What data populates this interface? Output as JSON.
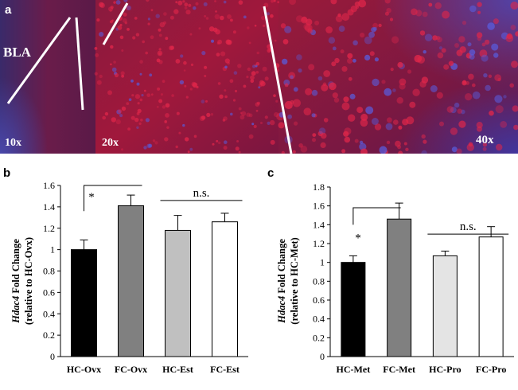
{
  "panel_a": {
    "letter": "a",
    "region_label": "BLA",
    "magnifications": [
      "10x",
      "20x",
      "40x"
    ]
  },
  "colors": {
    "black_bar": "#000000",
    "dark_gray_bar": "#808080",
    "light_gray_bar": "#c0c0c0",
    "very_light_gray_bar": "#e4e4e4",
    "white_bar": "#ffffff",
    "micrograph_red": "#b01e3c",
    "micrograph_blue": "#3c3ca0"
  },
  "chart_data": [
    {
      "panel": "b",
      "type": "bar",
      "categories": [
        "HC-Ovx",
        "FC-Ovx",
        "HC-Est",
        "FC-Est"
      ],
      "values": [
        1.0,
        1.41,
        1.18,
        1.26
      ],
      "errors": [
        0.09,
        0.1,
        0.14,
        0.08
      ],
      "bar_colors": [
        "#000000",
        "#808080",
        "#c0c0c0",
        "#ffffff"
      ],
      "ylabel_gene": "Hdac4",
      "ylabel_rest": " Fold Change",
      "ylabel_sub": "(relative to HC-Ovx)",
      "ylim": [
        0,
        1.6
      ],
      "yticks": [
        "0",
        "0.2",
        "0.4",
        "0.6",
        "0.8",
        "1",
        "1.2",
        "1.4",
        "1.6"
      ],
      "sig_star": "*",
      "sig_ns": "n.s."
    },
    {
      "panel": "c",
      "type": "bar",
      "categories": [
        "HC-Met",
        "FC-Met",
        "HC-Pro",
        "FC-Pro"
      ],
      "values": [
        1.0,
        1.46,
        1.07,
        1.27
      ],
      "errors": [
        0.07,
        0.17,
        0.05,
        0.11
      ],
      "bar_colors": [
        "#000000",
        "#808080",
        "#e4e4e4",
        "#ffffff"
      ],
      "ylabel_gene": "Hdac4",
      "ylabel_rest": " Fold Change",
      "ylabel_sub": "(relative to HC-Met)",
      "ylim": [
        0,
        1.8
      ],
      "yticks": [
        "0",
        "0.2",
        "0.4",
        "0.6",
        "0.8",
        "1",
        "1.2",
        "1.4",
        "1.6",
        "1.8"
      ],
      "sig_star": "*",
      "sig_ns": "n.s."
    }
  ]
}
